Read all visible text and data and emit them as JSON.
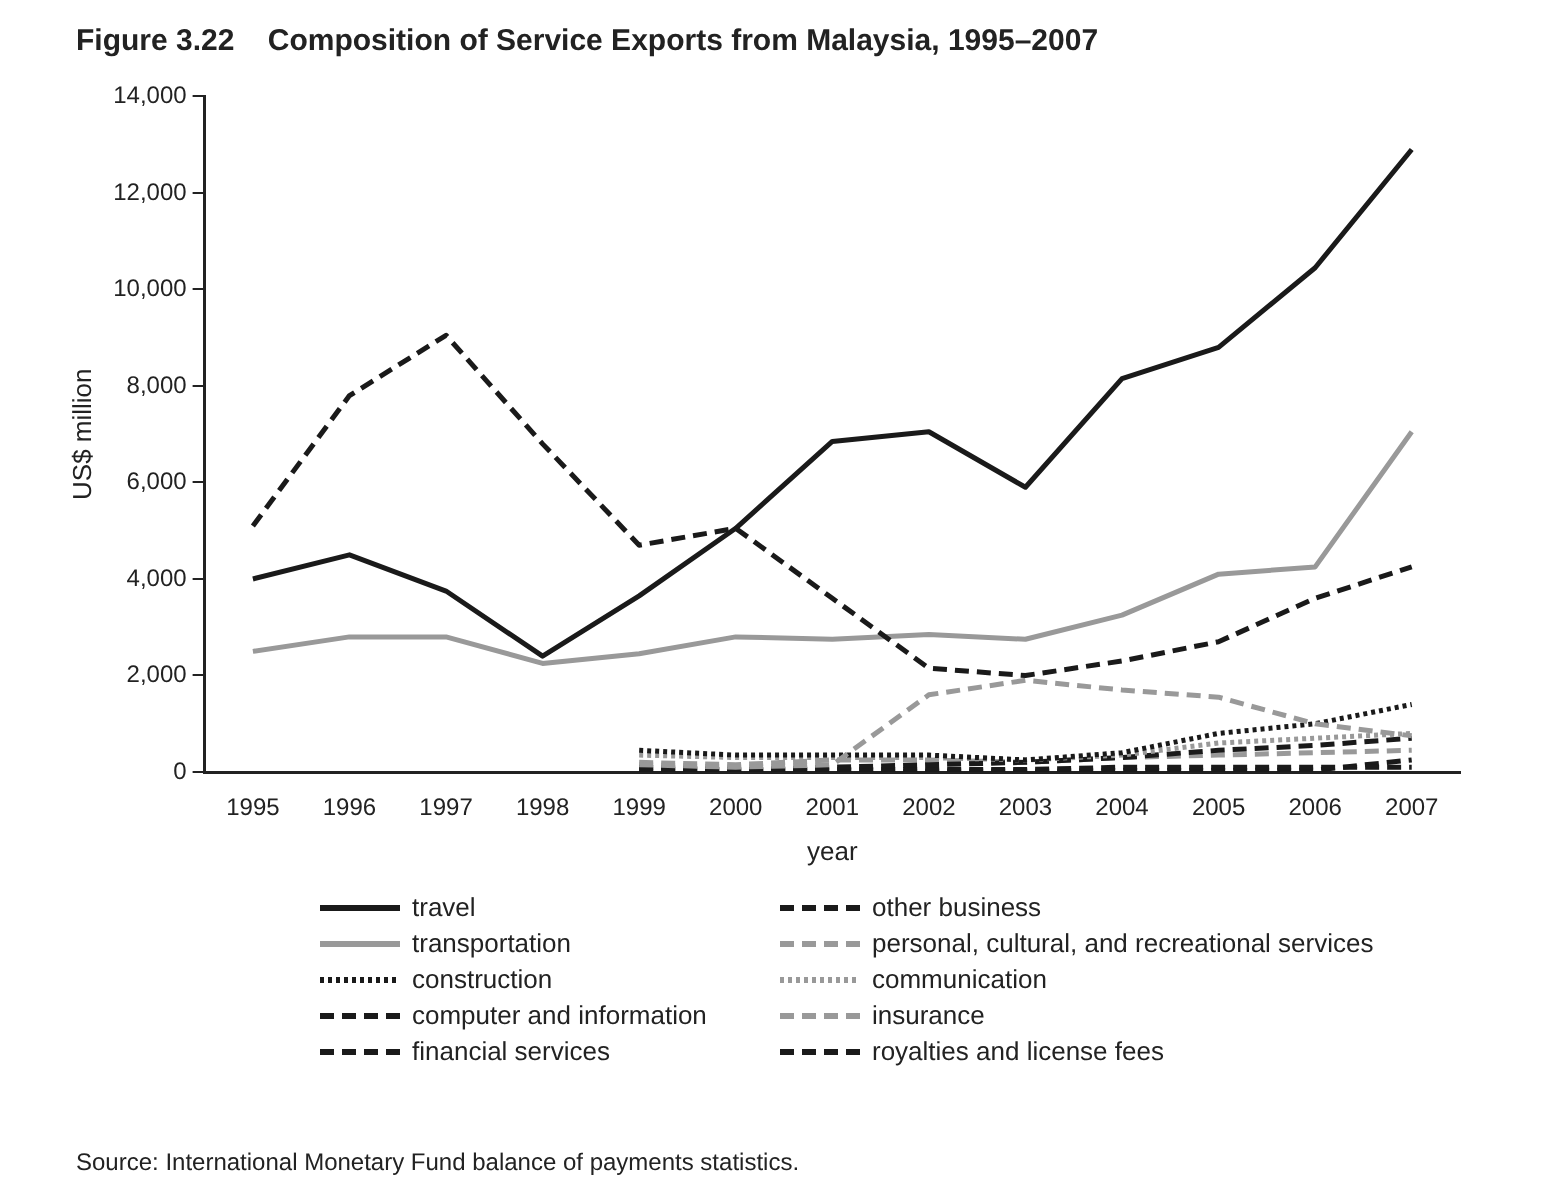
{
  "chart_data": {
    "type": "line",
    "title": "Figure 3.22    Composition of Service Exports from Malaysia, 1995–2007",
    "xlabel": "year",
    "ylabel": "US$ million",
    "categories": [
      "1995",
      "1996",
      "1997",
      "1998",
      "1999",
      "2000",
      "2001",
      "2002",
      "2003",
      "2004",
      "2005",
      "2006",
      "2007"
    ],
    "ylim": [
      0,
      14000
    ],
    "yticks": [
      {
        "value": 0,
        "label": "0"
      },
      {
        "value": 2000,
        "label": "2,000"
      },
      {
        "value": 4000,
        "label": "4,000"
      },
      {
        "value": 6000,
        "label": "6,000"
      },
      {
        "value": 8000,
        "label": "8,000"
      },
      {
        "value": 10000,
        "label": "10,000"
      },
      {
        "value": 12000,
        "label": "12,000"
      },
      {
        "value": 14000,
        "label": "14,000"
      }
    ],
    "grid": false,
    "legend": "bottom",
    "marker": "none",
    "series": [
      {
        "name": "travel",
        "color": "#1a1a1a",
        "line_style": "solid",
        "values": [
          4000,
          4500,
          3750,
          2400,
          3650,
          5050,
          6850,
          7050,
          5900,
          8150,
          8800,
          10450,
          12900
        ]
      },
      {
        "name": "other business",
        "color": "#1a1a1a",
        "line_style": "dashed",
        "values": [
          5100,
          7800,
          9050,
          6800,
          4700,
          5050,
          3600,
          2150,
          2000,
          2300,
          2700,
          3600,
          4250
        ]
      },
      {
        "name": "transportation",
        "color": "#999999",
        "line_style": "solid",
        "values": [
          2500,
          2800,
          2800,
          2250,
          2450,
          2800,
          2750,
          2850,
          2750,
          3250,
          4100,
          4250,
          7050
        ]
      },
      {
        "name": "personal, cultural, and recreational services",
        "color": "#999999",
        "line_style": "dashed",
        "values": [
          null,
          null,
          null,
          null,
          150,
          100,
          150,
          1600,
          1900,
          1700,
          1550,
          1000,
          750
        ]
      },
      {
        "name": "construction",
        "color": "#1a1a1a",
        "line_style": "dotted",
        "values": [
          null,
          null,
          null,
          null,
          450,
          350,
          350,
          350,
          250,
          400,
          800,
          1000,
          1400
        ]
      },
      {
        "name": "communication",
        "color": "#999999",
        "line_style": "dotted",
        "values": [
          null,
          null,
          null,
          null,
          350,
          300,
          300,
          300,
          250,
          350,
          600,
          700,
          800
        ]
      },
      {
        "name": "computer and information",
        "color": "#1a1a1a",
        "line_style": "dashed",
        "values": [
          null,
          null,
          null,
          null,
          100,
          50,
          100,
          150,
          200,
          300,
          450,
          550,
          700
        ]
      },
      {
        "name": "insurance",
        "color": "#999999",
        "line_style": "dashed",
        "values": [
          null,
          null,
          null,
          null,
          200,
          150,
          250,
          250,
          200,
          300,
          350,
          400,
          450
        ]
      },
      {
        "name": "financial services",
        "color": "#1a1a1a",
        "line_style": "dashed",
        "values": [
          null,
          null,
          null,
          null,
          50,
          50,
          50,
          50,
          50,
          100,
          100,
          100,
          100
        ]
      },
      {
        "name": "royalties and license fees",
        "color": "#1a1a1a",
        "line_style": "dashed",
        "values": [
          null,
          null,
          null,
          null,
          20,
          20,
          30,
          20,
          20,
          30,
          30,
          40,
          250
        ]
      }
    ],
    "annotations": [
      "Source: International Monetary Fund balance of payments statistics."
    ]
  }
}
